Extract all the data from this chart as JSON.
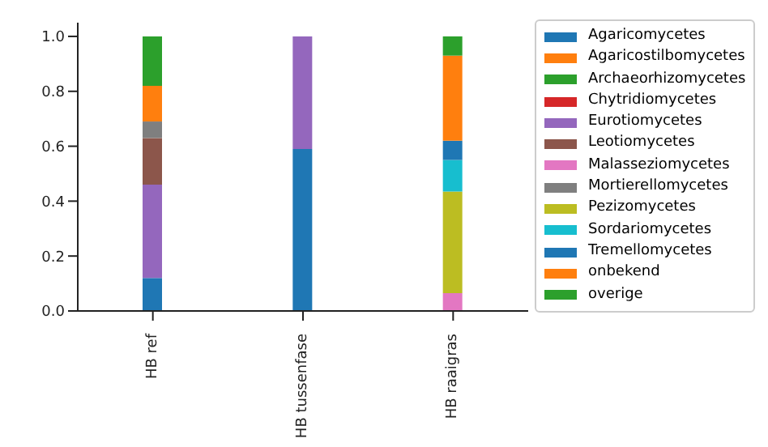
{
  "chart_data": {
    "type": "bar",
    "stacked": true,
    "categories": [
      "HB ref",
      "HB tussenfase",
      "HB raaigras"
    ],
    "series": [
      {
        "name": "Agaricomycetes",
        "color": "#1f77b4",
        "values": [
          0.12,
          0.59,
          0
        ]
      },
      {
        "name": "Agaricostilbomycetes",
        "color": "#ff7f0e",
        "values": [
          0,
          0,
          0
        ]
      },
      {
        "name": "Archaeorhizomycetes",
        "color": "#2ca02c",
        "values": [
          0,
          0,
          0
        ]
      },
      {
        "name": "Chytridiomycetes",
        "color": "#d62728",
        "values": [
          0,
          0,
          0
        ]
      },
      {
        "name": "Eurotiomycetes",
        "color": "#9467bd",
        "values": [
          0.34,
          0.41,
          0
        ]
      },
      {
        "name": "Leotiomycetes",
        "color": "#8c564b",
        "values": [
          0.17,
          0,
          0
        ]
      },
      {
        "name": "Malasseziomycetes",
        "color": "#e377c2",
        "values": [
          0,
          0,
          0.065
        ]
      },
      {
        "name": "Mortierellomycetes",
        "color": "#7f7f7f",
        "values": [
          0.06,
          0,
          0
        ]
      },
      {
        "name": "Pezizomycetes",
        "color": "#bcbd22",
        "values": [
          0,
          0,
          0.37
        ]
      },
      {
        "name": "Sordariomycetes",
        "color": "#17becf",
        "values": [
          0,
          0,
          0.115
        ]
      },
      {
        "name": "Tremellomycetes",
        "color": "#1f77b4",
        "values": [
          0,
          0,
          0.07
        ]
      },
      {
        "name": "onbekend",
        "color": "#ff7f0e",
        "values": [
          0.13,
          0,
          0.31
        ]
      },
      {
        "name": "overige",
        "color": "#2ca02c",
        "values": [
          0.18,
          0,
          0.07
        ]
      }
    ],
    "ylim": [
      0,
      1.05
    ],
    "yticks": [
      {
        "value": 0,
        "label": "0.0"
      },
      0.2,
      0.4,
      0.6,
      0.8,
      {
        "value": 1,
        "label": "1.0"
      }
    ],
    "legend": "right"
  }
}
